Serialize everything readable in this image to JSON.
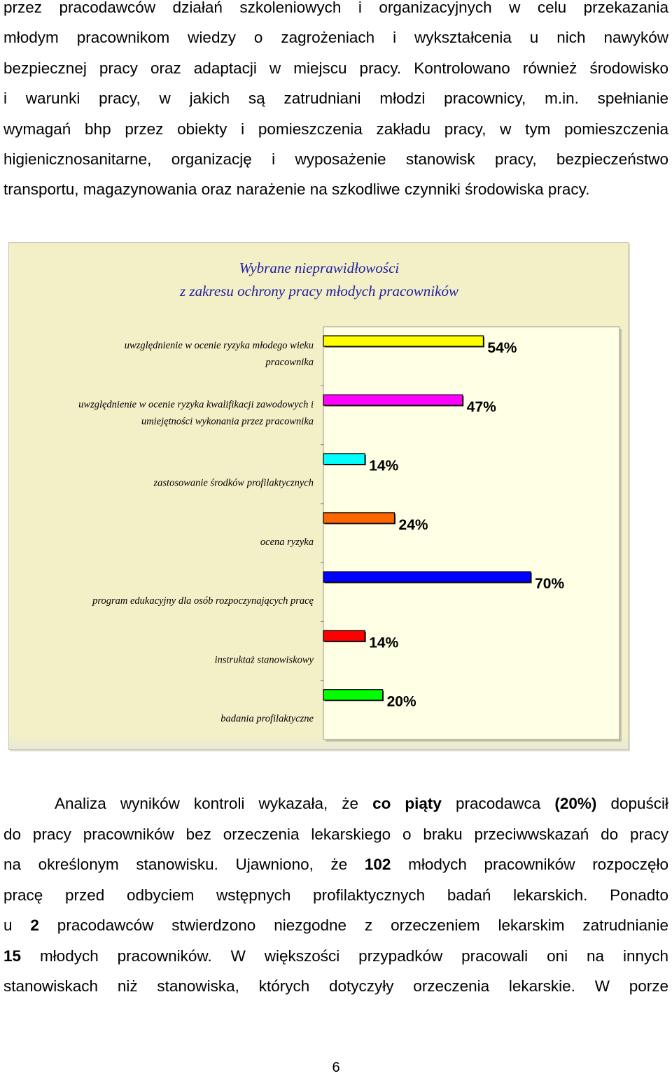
{
  "top_paragraph": {
    "lines": [
      "przez pracodawców działań szkoleniowych i organizacyjnych w celu przekazania",
      "młodym pracownikom wiedzy o zagrożeniach i wykształcenia u nich nawyków",
      "bezpiecznej pracy oraz adaptacji w miejscu pracy. Kontrolowano również środowisko",
      "i warunki pracy, w jakich są zatrudniani młodzi pracownicy, m.in. spełnianie",
      "wymagań bhp przez obiekty i pomieszczenia zakładu pracy, w tym pomieszczenia",
      "higienicznosanitarne, organizację i wyposażenie stanowisk pracy, bezpieczeństwo",
      "transportu, magazynowania oraz narażenie na szkodliwe czynniki środowiska pracy."
    ]
  },
  "chart_data": {
    "type": "bar",
    "orientation": "horizontal",
    "title": [
      "Wybrane nieprawidłowości",
      "z zakresu ochrony pracy młodych pracowników"
    ],
    "categories": [
      [
        "uwzględnienie w ocenie ryzyka młodego wieku",
        "pracownika"
      ],
      [
        "uwzględnienie w ocenie ryzyka kwalifikacji zawodowych i",
        "umiejętności wykonania przez pracownika"
      ],
      [
        "zastosowanie środków profilaktycznych"
      ],
      [
        "ocena ryzyka"
      ],
      [
        "program edukacyjny dla osób rozpoczynających pracę"
      ],
      [
        "instruktaż stanowiskowy"
      ],
      [
        "badania profilaktyczne"
      ]
    ],
    "values": [
      54,
      47,
      14,
      24,
      70,
      14,
      20
    ],
    "value_labels": [
      "54%",
      "47%",
      "14%",
      "24%",
      "70%",
      "14%",
      "20%"
    ],
    "colors": [
      "#ffff00",
      "#ff00ff",
      "#00ffff",
      "#ff6600",
      "#0000ff",
      "#ff0000",
      "#00ff00"
    ],
    "xlim": [
      0,
      100
    ],
    "grid": false,
    "legend": "none",
    "background": "#f3efc6",
    "plot_background": "#ffffe6",
    "title_color": "#1f1fa0"
  },
  "bottom_paragraph": {
    "lines": [
      [
        {
          "t": "Analiza wyników kontroli wykazała, że "
        },
        {
          "t": "co piąty",
          "b": true
        },
        {
          "t": " pracodawca "
        },
        {
          "t": "(20%)",
          "b": true
        },
        {
          "t": " dopuścił"
        }
      ],
      [
        {
          "t": "do pracy pracowników bez orzeczenia lekarskiego o braku przeciwwskazań do pracy"
        }
      ],
      [
        {
          "t": "na określonym stanowisku. Ujawniono, że "
        },
        {
          "t": "102",
          "b": true
        },
        {
          "t": " młodych pracowników rozpoczęło"
        }
      ],
      [
        {
          "t": "pracę przed odbyciem wstępnych profilaktycznych badań lekarskich. Ponadto"
        }
      ],
      [
        {
          "t": "u "
        },
        {
          "t": "2",
          "b": true
        },
        {
          "t": " pracodawców stwierdzono niezgodne z orzeczeniem lekarskim zatrudnianie"
        }
      ],
      [
        {
          "t": "15",
          "b": true
        },
        {
          "t": " młodych pracowników. W większości przypadków pracowali oni na innych"
        }
      ],
      [
        {
          "t": "stanowiskach niż stanowiska, których dotyczyły orzeczenia lekarskie. W porze"
        }
      ]
    ]
  },
  "page_number": "6"
}
